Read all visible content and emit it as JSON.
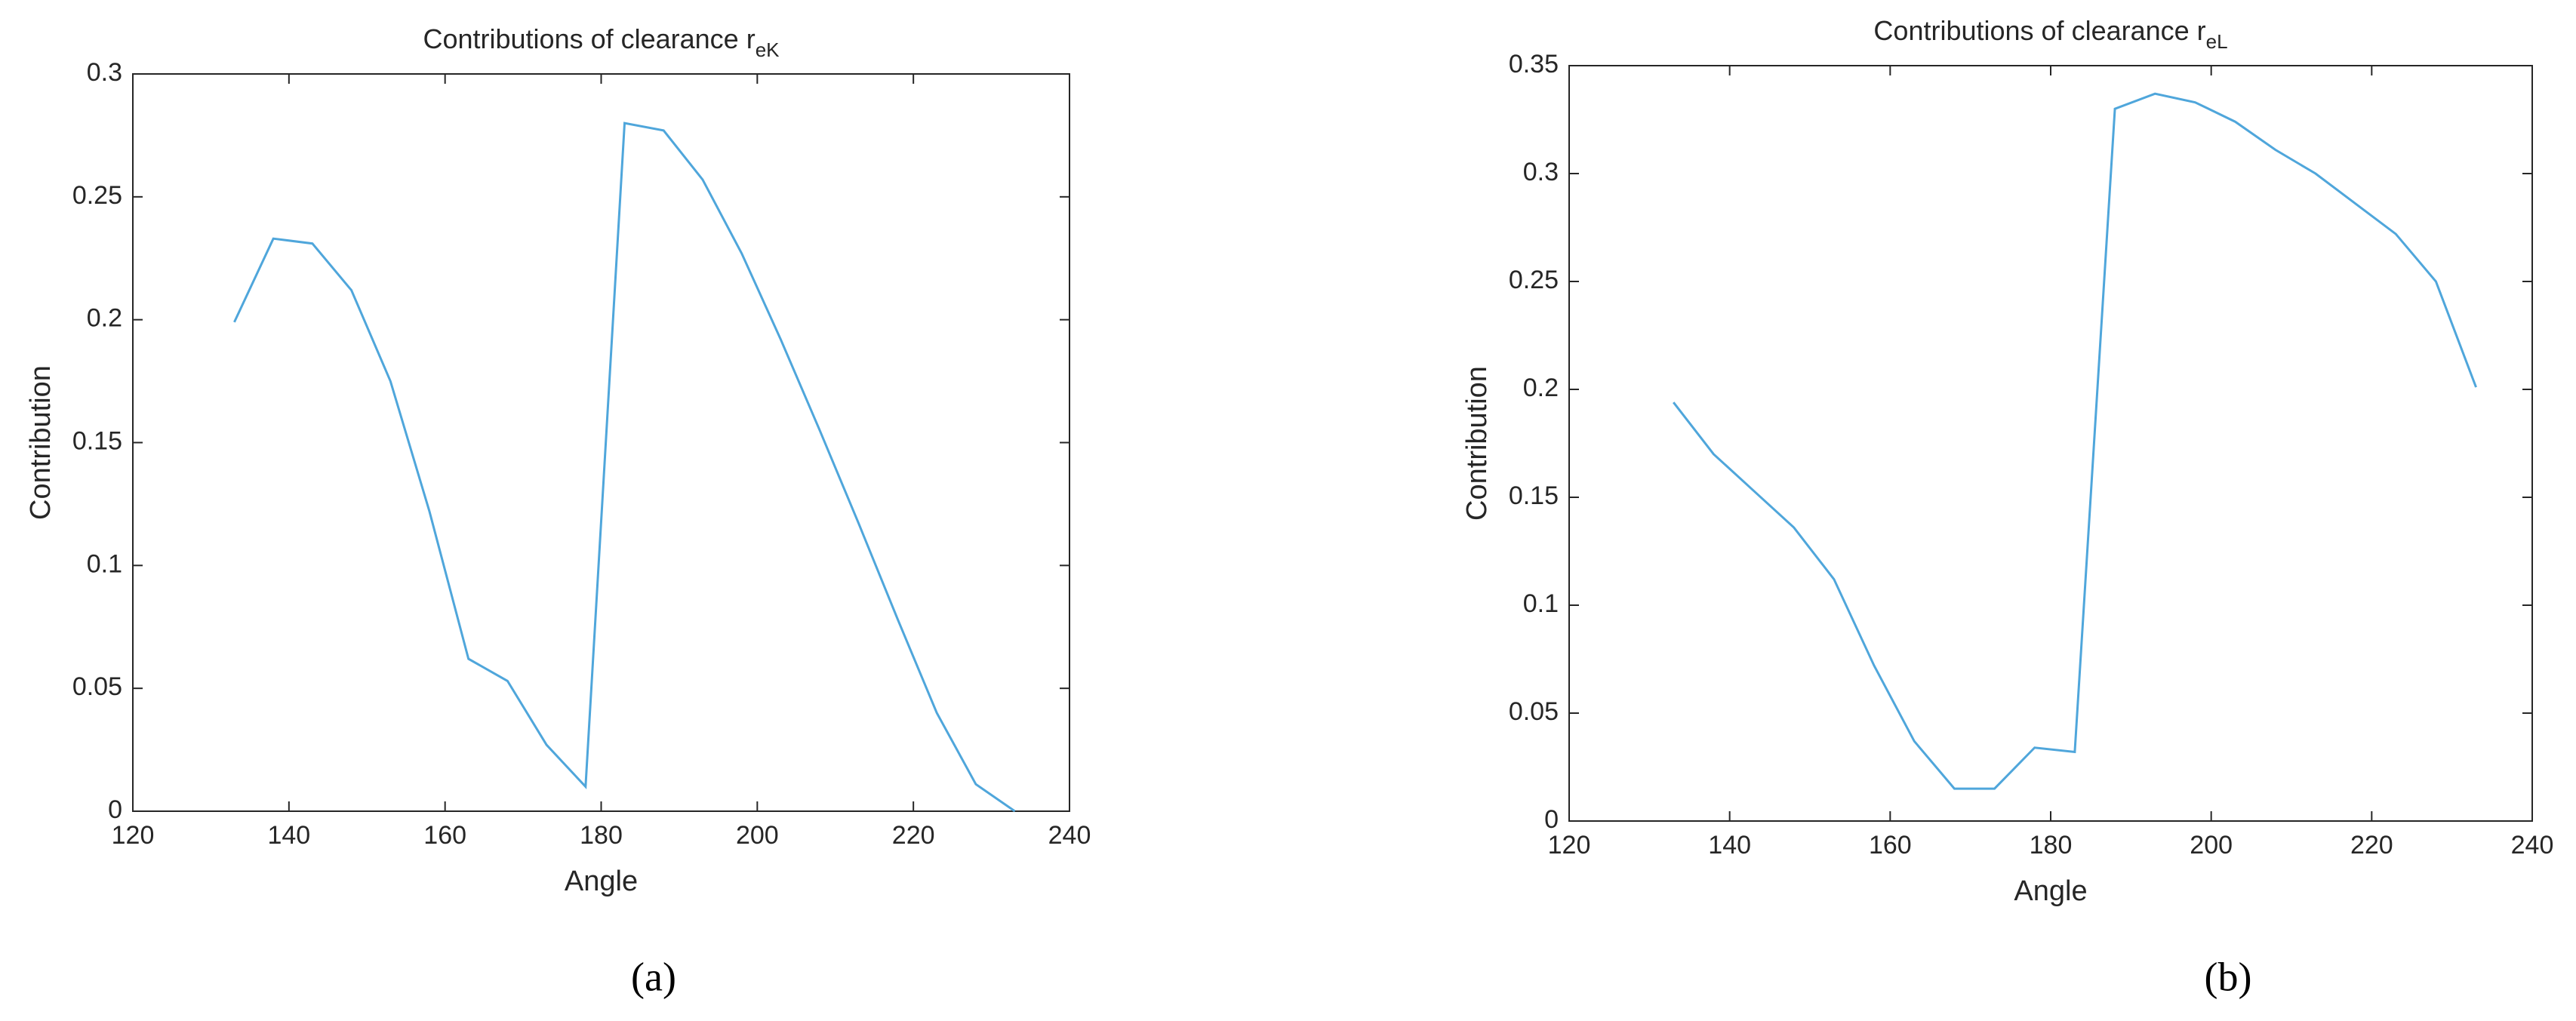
{
  "chart_data": [
    {
      "type": "line",
      "title": "Contributions of clearance r",
      "title_subscript": "eK",
      "x_label": "Angle",
      "y_label": "Contribution",
      "caption": "(a)",
      "x": [
        133,
        138,
        143,
        148,
        153,
        158,
        163,
        168,
        173,
        178,
        183,
        188,
        193,
        198,
        203,
        208,
        213,
        218,
        223,
        228,
        233
      ],
      "values": [
        0.199,
        0.233,
        0.231,
        0.212,
        0.175,
        0.122,
        0.062,
        0.053,
        0.027,
        0.01,
        0.28,
        0.277,
        0.257,
        0.227,
        0.192,
        0.155,
        0.117,
        0.078,
        0.04,
        0.011,
        0.0
      ],
      "color": "#4fa6db",
      "xlim": [
        120,
        240
      ],
      "xticks": [
        120,
        140,
        160,
        180,
        200,
        220,
        240
      ],
      "ylim": [
        0,
        0.3
      ],
      "yticks": [
        0,
        0.05,
        0.1,
        0.15,
        0.2,
        0.25,
        0.3
      ]
    },
    {
      "type": "line",
      "title": "Contributions of clearance r",
      "title_subscript": "eL",
      "x_label": "Angle",
      "y_label": "Contribution",
      "caption": "(b)",
      "x": [
        133,
        138,
        143,
        148,
        153,
        158,
        163,
        168,
        173,
        178,
        183,
        188,
        193,
        198,
        203,
        208,
        213,
        218,
        223,
        228,
        233
      ],
      "values": [
        0.194,
        0.17,
        0.153,
        0.136,
        0.112,
        0.072,
        0.037,
        0.015,
        0.015,
        0.034,
        0.032,
        0.33,
        0.337,
        0.333,
        0.324,
        0.311,
        0.3,
        0.286,
        0.272,
        0.25,
        0.201
      ],
      "color": "#4fa6db",
      "xlim": [
        120,
        240
      ],
      "xticks": [
        120,
        140,
        160,
        180,
        200,
        220,
        240
      ],
      "ylim": [
        0,
        0.35
      ],
      "yticks": [
        0,
        0.05,
        0.1,
        0.15,
        0.2,
        0.25,
        0.3,
        0.35
      ]
    }
  ]
}
